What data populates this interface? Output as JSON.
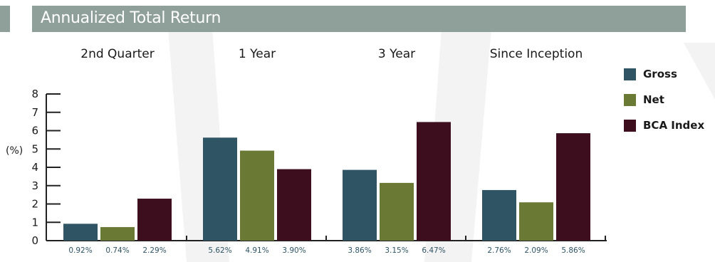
{
  "title": "Annualized Total Return",
  "colors": {
    "header_bar": "#8f9f9a",
    "gross": "#2f5565",
    "net": "#6a7a35",
    "bca": "#3d0f1e"
  },
  "legend": [
    {
      "label": "Gross",
      "color": "#2f5565"
    },
    {
      "label": "Net",
      "color": "#6a7a35"
    },
    {
      "label": "BCA Index",
      "color": "#3d0f1e"
    }
  ],
  "chart_data": {
    "type": "bar",
    "title": "Annualized Total Return",
    "ylabel": "(%)",
    "xlabel": "",
    "ylim": [
      0,
      8
    ],
    "yticks": [
      "0",
      "1",
      "2",
      "3",
      "4",
      "5",
      "6",
      "7",
      "8"
    ],
    "categories": [
      "2nd Quarter",
      "1 Year",
      "3 Year",
      "Since Inception"
    ],
    "series": [
      {
        "name": "Gross",
        "values": [
          0.92,
          5.62,
          3.86,
          2.76
        ],
        "labels": [
          "0.92%",
          "5.62%",
          "3.86%",
          "2.76%"
        ]
      },
      {
        "name": "Net",
        "values": [
          0.74,
          4.91,
          3.15,
          2.09
        ],
        "labels": [
          "0.74%",
          "4.91%",
          "3.15%",
          "2.09%"
        ]
      },
      {
        "name": "BCA Index",
        "values": [
          2.29,
          3.9,
          6.47,
          5.86
        ],
        "labels": [
          "2.29%",
          "3.90%",
          "6.47%",
          "5.86%"
        ]
      }
    ],
    "legend_position": "right",
    "grid": false
  }
}
